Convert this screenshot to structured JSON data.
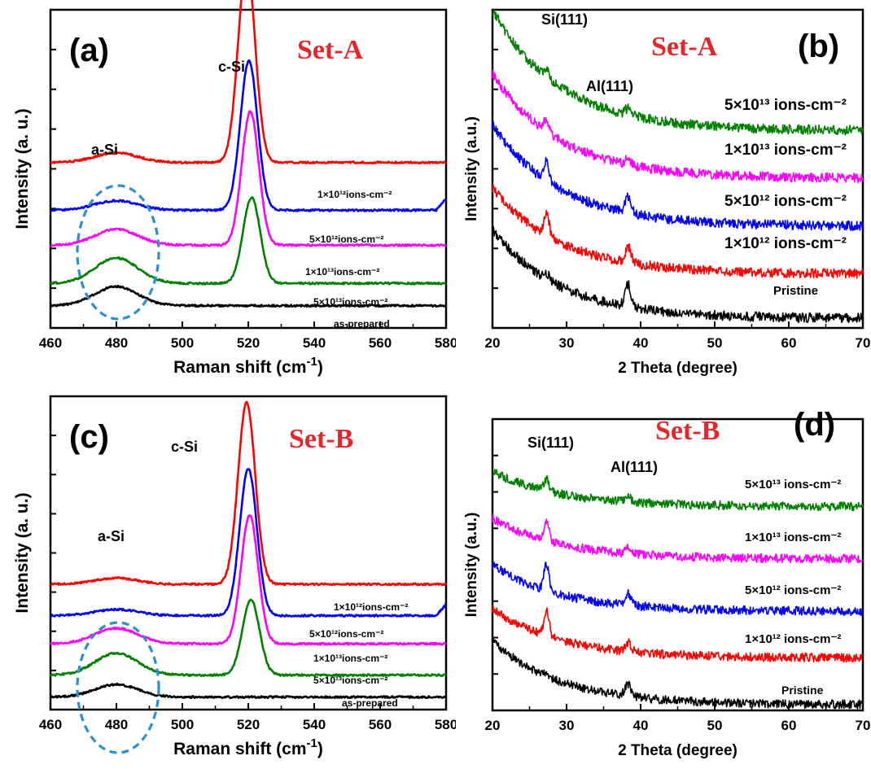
{
  "chart_data": [
    {
      "panel": "(a)",
      "set_label": "Set-A",
      "type": "line",
      "xlabel": "Raman shift (cm",
      "xlabel_sup": "-1",
      "xlabel_end": ")",
      "ylabel": "Intensity (a. u.)",
      "xlim": [
        460,
        580
      ],
      "xticks": [
        460,
        480,
        500,
        520,
        540,
        560,
        580
      ],
      "peaks": {
        "a_si": {
          "label": "a-Si",
          "x": 480
        },
        "c_si": {
          "label": "c-Si",
          "x": 520
        }
      },
      "series": [
        {
          "name": "1×10¹²ions-cm⁻²",
          "color": "#ff0000",
          "baseline": 0.52,
          "csi_height": 0.62,
          "csi_center": 519.5,
          "asi_height": 0.03
        },
        {
          "name": "5×10¹²ions-cm⁻²",
          "color": "#0000ff",
          "baseline": 0.37,
          "csi_height": 0.47,
          "csi_center": 520.2,
          "asi_height": 0.03
        },
        {
          "name": "1×10¹³ions-cm⁻²",
          "color": "#ff00ff",
          "baseline": 0.26,
          "csi_height": 0.42,
          "csi_center": 520.6,
          "asi_height": 0.05
        },
        {
          "name": "5×10¹³ions-cm⁻²",
          "color": "#008000",
          "baseline": 0.14,
          "csi_height": 0.27,
          "csi_center": 521,
          "asi_height": 0.08
        },
        {
          "name": "as-prepared",
          "color": "#000000",
          "baseline": 0.07,
          "csi_height": 0.0,
          "csi_center": 520,
          "asi_height": 0.06
        }
      ]
    },
    {
      "panel": "(b)",
      "set_label": "Set-A",
      "type": "line",
      "xlabel": "2 Theta (degree)",
      "ylabel": "Intensity (a.u.)",
      "xlim": [
        20,
        70
      ],
      "xticks": [
        20,
        30,
        40,
        50,
        60,
        70
      ],
      "peaks": {
        "si111": {
          "label": "Si(111)",
          "x": 27.3
        },
        "al111": {
          "label": "Al(111)",
          "x": 38.3
        }
      },
      "series": [
        {
          "name": "5×10¹³ ions-cm⁻²",
          "color": "#008000",
          "baseline": 0.62,
          "start_rise": 0.38,
          "si_height": 0.03,
          "al_height": 0.02
        },
        {
          "name": "1×10¹³ ions-cm⁻²",
          "color": "#ff00ff",
          "baseline": 0.47,
          "start_rise": 0.33,
          "si_height": 0.04,
          "al_height": 0.02
        },
        {
          "name": "5×10¹² ions-cm⁻²",
          "color": "#0000ff",
          "baseline": 0.32,
          "start_rise": 0.32,
          "si_height": 0.06,
          "al_height": 0.05
        },
        {
          "name": "1×10¹² ions-cm⁻²",
          "color": "#ff0000",
          "baseline": 0.17,
          "start_rise": 0.27,
          "si_height": 0.07,
          "al_height": 0.05
        },
        {
          "name": "Pristine",
          "color": "#000000",
          "baseline": 0.03,
          "start_rise": 0.28,
          "si_height": 0.02,
          "al_height": 0.07
        }
      ]
    },
    {
      "panel": "(c)",
      "set_label": "Set-B",
      "type": "line",
      "xlabel": "Raman shift (cm",
      "xlabel_sup": "-1",
      "xlabel_end": ")",
      "ylabel": "Intensity (a. u.)",
      "xlim": [
        460,
        580
      ],
      "xticks": [
        460,
        480,
        500,
        520,
        540,
        560,
        580
      ],
      "peaks": {
        "a_si": {
          "label": "a-Si",
          "x": 480
        },
        "c_si": {
          "label": "c-Si",
          "x": 520
        }
      },
      "series": [
        {
          "name": "1×10¹²ions-cm⁻²",
          "color": "#ff0000",
          "baseline": 0.4,
          "csi_height": 0.58,
          "csi_center": 519.5,
          "asi_height": 0.02
        },
        {
          "name": "5×10¹²ions-cm⁻²",
          "color": "#0000ff",
          "baseline": 0.3,
          "csi_height": 0.47,
          "csi_center": 520,
          "asi_height": 0.02
        },
        {
          "name": "1×10¹³ions-cm⁻²",
          "color": "#ff00ff",
          "baseline": 0.21,
          "csi_height": 0.41,
          "csi_center": 520.4,
          "asi_height": 0.05
        },
        {
          "name": "5×10¹³ions-cm⁻²",
          "color": "#008000",
          "baseline": 0.11,
          "csi_height": 0.24,
          "csi_center": 520.8,
          "asi_height": 0.07
        },
        {
          "name": "as-prepared",
          "color": "#000000",
          "baseline": 0.04,
          "csi_height": 0.0,
          "csi_center": 520,
          "asi_height": 0.04
        }
      ]
    },
    {
      "panel": "(d)",
      "set_label": "Set-B",
      "type": "line",
      "xlabel": "2 Theta (degree)",
      "ylabel": "Intensity (a.u.)",
      "xlim": [
        20,
        70
      ],
      "xticks": [
        20,
        30,
        40,
        50,
        60,
        70
      ],
      "peaks": {
        "si111": {
          "label": "Si(111)",
          "x": 27.3
        },
        "al111": {
          "label": "Al(111)",
          "x": 38.3
        }
      },
      "series": [
        {
          "name": "5×10¹³ ions-cm⁻²",
          "color": "#008000",
          "baseline": 0.7,
          "start_rise": 0.12,
          "si_height": 0.04,
          "al_height": 0.02
        },
        {
          "name": "1×10¹³ ions-cm⁻²",
          "color": "#ff00ff",
          "baseline": 0.52,
          "start_rise": 0.14,
          "si_height": 0.06,
          "al_height": 0.02
        },
        {
          "name": "5×10¹² ions-cm⁻²",
          "color": "#0000ff",
          "baseline": 0.34,
          "start_rise": 0.16,
          "si_height": 0.09,
          "al_height": 0.04
        },
        {
          "name": "1×10¹² ions-cm⁻²",
          "color": "#ff0000",
          "baseline": 0.18,
          "start_rise": 0.17,
          "si_height": 0.09,
          "al_height": 0.03
        },
        {
          "name": "Pristine",
          "color": "#000000",
          "baseline": 0.02,
          "start_rise": 0.22,
          "si_height": 0.01,
          "al_height": 0.04
        }
      ]
    }
  ]
}
